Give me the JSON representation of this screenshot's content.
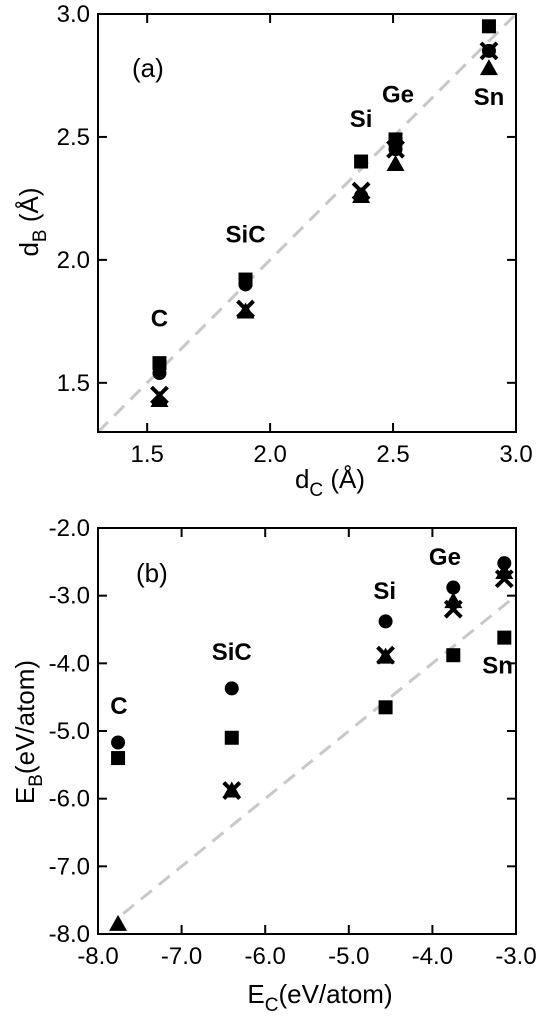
{
  "chart_data": [
    {
      "panel": "(a)",
      "type": "scatter",
      "xlabel": "d",
      "xlabel_sub": "C",
      "xlabel_unit": " (Å)",
      "ylabel": "d",
      "ylabel_sub": "B",
      "ylabel_unit": " (Å)",
      "xlim": [
        1.3,
        3.0
      ],
      "ylim": [
        1.3,
        3.0
      ],
      "xticks": [
        1.5,
        2.0,
        2.5,
        3.0
      ],
      "xtick_labels": [
        "1.5",
        "2.0",
        "2.5",
        "3.0"
      ],
      "yticks": [
        1.5,
        2.0,
        2.5,
        3.0
      ],
      "ytick_labels": [
        "1.5",
        "2.0",
        "2.5",
        "3.0"
      ],
      "reference_line": {
        "style": "dashed",
        "color": "#c8c8c8",
        "from": [
          1.3,
          1.3
        ],
        "to": [
          3.0,
          3.0
        ]
      },
      "element_labels": [
        {
          "text": "C",
          "x": 1.55,
          "y": 1.73
        },
        {
          "text": "SiC",
          "x": 1.9,
          "y": 2.07
        },
        {
          "text": "Si",
          "x": 2.37,
          "y": 2.54
        },
        {
          "text": "Ge",
          "x": 2.52,
          "y": 2.64
        },
        {
          "text": "Sn",
          "x": 2.89,
          "y": 2.63
        }
      ],
      "series": [
        {
          "marker": "square",
          "x": [
            1.55,
            1.9,
            2.37,
            2.51,
            2.89
          ],
          "y": [
            1.58,
            1.92,
            2.4,
            2.49,
            2.95
          ]
        },
        {
          "marker": "circle",
          "x": [
            1.55,
            1.9,
            2.37,
            2.51,
            2.89
          ],
          "y": [
            1.54,
            1.9,
            2.26,
            2.45,
            2.85
          ]
        },
        {
          "marker": "cross",
          "x": [
            1.55,
            1.9,
            2.37,
            2.51,
            2.89
          ],
          "y": [
            1.45,
            1.8,
            2.28,
            2.45,
            2.85
          ]
        },
        {
          "marker": "triangle",
          "x": [
            1.55,
            1.9,
            2.37,
            2.51,
            2.89
          ],
          "y": [
            1.43,
            1.79,
            2.26,
            2.39,
            2.78
          ]
        }
      ]
    },
    {
      "panel": "(b)",
      "type": "scatter",
      "xlabel": "E",
      "xlabel_sub": "C",
      "xlabel_unit": "(eV/atom)",
      "ylabel": "E",
      "ylabel_sub": "B",
      "ylabel_unit": "(eV/atom)",
      "xlim": [
        -8.0,
        -3.0
      ],
      "ylim": [
        -8.0,
        -2.0
      ],
      "xticks": [
        -8.0,
        -7.0,
        -6.0,
        -5.0,
        -4.0,
        -3.0
      ],
      "xtick_labels": [
        "-8.0",
        "-7.0",
        "-6.0",
        "-5.0",
        "-4.0",
        "-3.0"
      ],
      "yticks": [
        -8.0,
        -7.0,
        -6.0,
        -5.0,
        -4.0,
        -3.0,
        -2.0
      ],
      "ytick_labels": [
        "-8.0",
        "-7.0",
        "-6.0",
        "-5.0",
        "-4.0",
        "-3.0",
        "-2.0"
      ],
      "reference_line": {
        "style": "dashed",
        "color": "#c8c8c8",
        "from": [
          -7.7,
          -7.7
        ],
        "to": [
          -3.0,
          -3.0
        ]
      },
      "element_labels": [
        {
          "text": "C",
          "x": -7.75,
          "y": -4.75
        },
        {
          "text": "SiC",
          "x": -6.4,
          "y": -3.95
        },
        {
          "text": "Si",
          "x": -4.57,
          "y": -3.05
        },
        {
          "text": "Ge",
          "x": -3.85,
          "y": -2.55
        },
        {
          "text": "Sn",
          "x": -3.22,
          "y": -4.15
        }
      ],
      "series": [
        {
          "marker": "square",
          "x": [
            -7.76,
            -6.4,
            -4.56,
            -3.75,
            -3.14
          ],
          "y": [
            -5.4,
            -5.1,
            -4.65,
            -3.88,
            -3.62
          ]
        },
        {
          "marker": "circle",
          "x": [
            -7.76,
            -6.4,
            -4.56,
            -3.75,
            -3.14
          ],
          "y": [
            -5.17,
            -4.37,
            -3.38,
            -2.88,
            -2.52
          ]
        },
        {
          "marker": "cross",
          "x": [
            -6.4,
            -4.56,
            -3.75,
            -3.14
          ],
          "y": [
            -5.88,
            -3.88,
            -3.2,
            -2.75
          ]
        },
        {
          "marker": "triangle",
          "x": [
            -7.76,
            -6.4,
            -4.56,
            -3.75,
            -3.14
          ],
          "y": [
            -7.85,
            -5.88,
            -3.9,
            -3.08,
            -2.65
          ]
        }
      ]
    }
  ]
}
